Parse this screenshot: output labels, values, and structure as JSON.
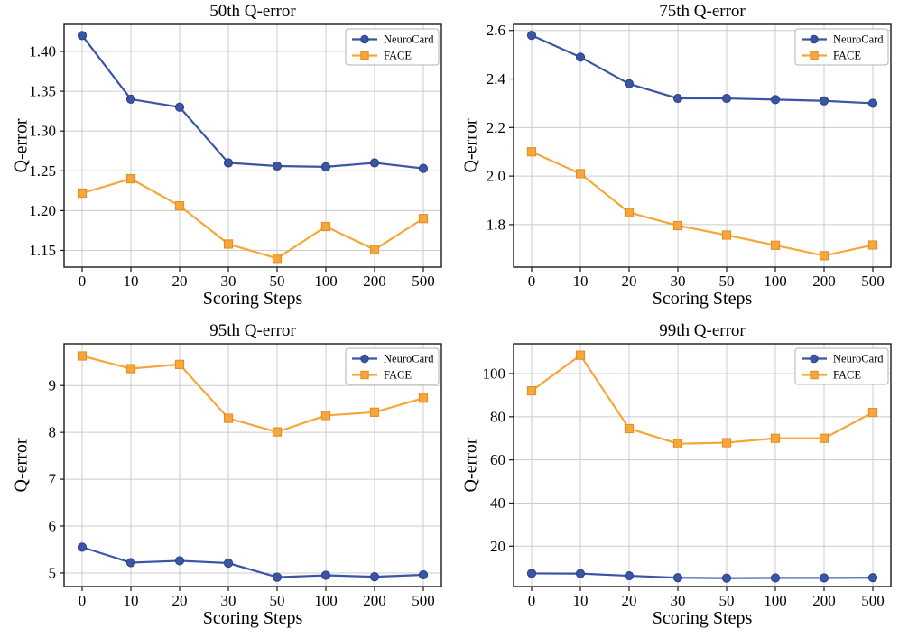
{
  "figure": {
    "background": "#ffffff",
    "grid_color": "#cccccc",
    "axis_color": "#1a1a1a",
    "legend_border_color": "#b3b3b3",
    "colors": {
      "neurocard": "#3A55A4",
      "face": "#F7A63B"
    }
  },
  "chart_data": [
    {
      "type": "line",
      "title": "50th Q-error",
      "xlabel": "Scoring Steps",
      "ylabel": "Q-error",
      "categories": [
        0,
        10,
        20,
        30,
        50,
        100,
        200,
        500
      ],
      "yticks": [
        1.15,
        1.2,
        1.25,
        1.3,
        1.35,
        1.4
      ],
      "ytick_decimals": 2,
      "ylim": [
        1.129,
        1.434
      ],
      "grid": true,
      "legend_position": "top-right",
      "series": [
        {
          "name": "NeuroCard",
          "marker": "circle",
          "color": "#3A55A4",
          "edge": "#2B4187",
          "values": [
            1.42,
            1.34,
            1.33,
            1.26,
            1.256,
            1.255,
            1.26,
            1.253
          ]
        },
        {
          "name": "FACE",
          "marker": "square",
          "color": "#F7A63B",
          "edge": "#E08E23",
          "values": [
            1.222,
            1.24,
            1.206,
            1.158,
            1.14,
            1.18,
            1.151,
            1.19
          ]
        }
      ]
    },
    {
      "type": "line",
      "title": "75th Q-error",
      "xlabel": "Scoring Steps",
      "ylabel": "Q-error",
      "categories": [
        0,
        10,
        20,
        30,
        50,
        100,
        200,
        500
      ],
      "yticks": [
        1.8,
        2.0,
        2.2,
        2.4,
        2.6
      ],
      "ytick_decimals": 1,
      "ylim": [
        1.625,
        2.625
      ],
      "grid": true,
      "legend_position": "top-right",
      "series": [
        {
          "name": "NeuroCard",
          "marker": "circle",
          "color": "#3A55A4",
          "edge": "#2B4187",
          "values": [
            2.58,
            2.49,
            2.38,
            2.32,
            2.32,
            2.315,
            2.31,
            2.3
          ]
        },
        {
          "name": "FACE",
          "marker": "square",
          "color": "#F7A63B",
          "edge": "#E08E23",
          "values": [
            2.1,
            2.01,
            1.85,
            1.796,
            1.757,
            1.715,
            1.672,
            1.716
          ]
        }
      ]
    },
    {
      "type": "line",
      "title": "95th Q-error",
      "xlabel": "Scoring Steps",
      "ylabel": "Q-error",
      "categories": [
        0,
        10,
        20,
        30,
        50,
        100,
        200,
        500
      ],
      "yticks": [
        5,
        6,
        7,
        8,
        9
      ],
      "ytick_decimals": 0,
      "ylim": [
        4.71,
        9.89
      ],
      "grid": true,
      "legend_position": "top-right",
      "series": [
        {
          "name": "NeuroCard",
          "marker": "circle",
          "color": "#3A55A4",
          "edge": "#2B4187",
          "values": [
            5.55,
            5.22,
            5.26,
            5.21,
            4.91,
            4.95,
            4.92,
            4.96
          ]
        },
        {
          "name": "FACE",
          "marker": "square",
          "color": "#F7A63B",
          "edge": "#E08E23",
          "values": [
            9.63,
            9.36,
            9.45,
            8.3,
            8.01,
            8.36,
            8.43,
            8.73
          ]
        }
      ]
    },
    {
      "type": "line",
      "title": "99th Q-error",
      "xlabel": "Scoring Steps",
      "ylabel": "Q-error",
      "categories": [
        0,
        10,
        20,
        30,
        50,
        100,
        200,
        500
      ],
      "yticks": [
        20,
        40,
        60,
        80,
        100
      ],
      "ytick_decimals": 0,
      "ylim": [
        1.3,
        113.8
      ],
      "grid": true,
      "legend_position": "top-right",
      "series": [
        {
          "name": "NeuroCard",
          "marker": "circle",
          "color": "#3A55A4",
          "edge": "#2B4187",
          "values": [
            7.4,
            7.3,
            6.3,
            5.4,
            5.2,
            5.3,
            5.3,
            5.4
          ]
        },
        {
          "name": "FACE",
          "marker": "square",
          "color": "#F7A63B",
          "edge": "#E08E23",
          "values": [
            92,
            108.5,
            74.5,
            67.5,
            68,
            70,
            70,
            82
          ]
        }
      ]
    }
  ]
}
